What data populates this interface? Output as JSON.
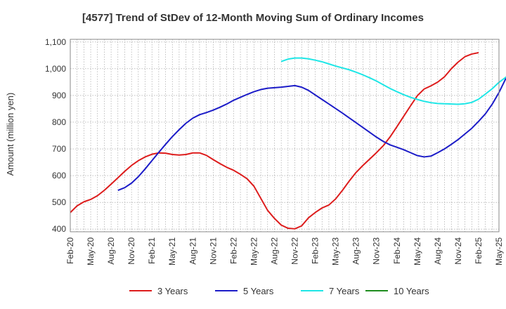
{
  "chart_data": {
    "type": "line",
    "title": "[4577]  Trend of StDev of 12-Month Moving Sum of Ordinary Incomes",
    "xlabel": "",
    "ylabel": "Amount (million yen)",
    "ylim": [
      390,
      1110
    ],
    "yticks": [
      400,
      500,
      600,
      700,
      800,
      900,
      1000,
      1100
    ],
    "ytick_labels": [
      "400",
      "500",
      "600",
      "700",
      "800",
      "900",
      "1,000",
      "1,100"
    ],
    "x_ticks": [
      "Feb-20",
      "May-20",
      "Aug-20",
      "Nov-20",
      "Feb-21",
      "May-21",
      "Aug-21",
      "Nov-21",
      "Feb-22",
      "May-22",
      "Aug-22",
      "Nov-22",
      "Feb-23",
      "May-23",
      "Aug-23",
      "Nov-23",
      "Feb-24",
      "May-24",
      "Aug-24",
      "Nov-24",
      "Feb-25",
      "May-25"
    ],
    "grid": true,
    "legend_position": "bottom",
    "series": [
      {
        "name": "3 Years",
        "color": "#dd1c1c",
        "start_month": 0,
        "values": [
          462,
          487,
          502,
          511,
          525,
          545,
          568,
          592,
          616,
          638,
          656,
          670,
          680,
          685,
          684,
          679,
          677,
          679,
          685,
          685,
          676,
          660,
          645,
          631,
          620,
          605,
          588,
          560,
          515,
          470,
          440,
          415,
          403,
          401,
          412,
          442,
          462,
          479,
          490,
          513,
          545,
          580,
          612,
          638,
          662,
          686,
          712,
          745,
          783,
          822,
          861,
          899,
          924,
          936,
          950,
          970,
          1000,
          1025,
          1045,
          1055,
          1060
        ]
      },
      {
        "name": "5 Years",
        "color": "#1c1cc8",
        "start_month": 7,
        "values": [
          545,
          555,
          572,
          596,
          625,
          656,
          687,
          717,
          746,
          772,
          796,
          815,
          828,
          836,
          845,
          856,
          868,
          882,
          893,
          904,
          914,
          922,
          927,
          929,
          931,
          934,
          937,
          931,
          919,
          902,
          885,
          868,
          851,
          834,
          816,
          798,
          780,
          762,
          744,
          728,
          715,
          706,
          697,
          686,
          675,
          670,
          673,
          686,
          700,
          717,
          735,
          756,
          777,
          803,
          831,
          867,
          911,
          963,
          1015,
          1063,
          1095
        ]
      },
      {
        "name": "7 Years",
        "color": "#1ee6e6",
        "start_month": 31,
        "values": [
          1027,
          1036,
          1040,
          1040,
          1037,
          1032,
          1026,
          1018,
          1010,
          1003,
          996,
          987,
          977,
          966,
          954,
          940,
          926,
          914,
          903,
          893,
          885,
          878,
          873,
          870,
          869,
          868,
          867,
          869,
          874,
          886,
          905,
          925,
          949,
          968,
          987
        ]
      },
      {
        "name": "10 Years",
        "color": "#1e8c1e",
        "start_month": 0,
        "values": []
      }
    ]
  }
}
